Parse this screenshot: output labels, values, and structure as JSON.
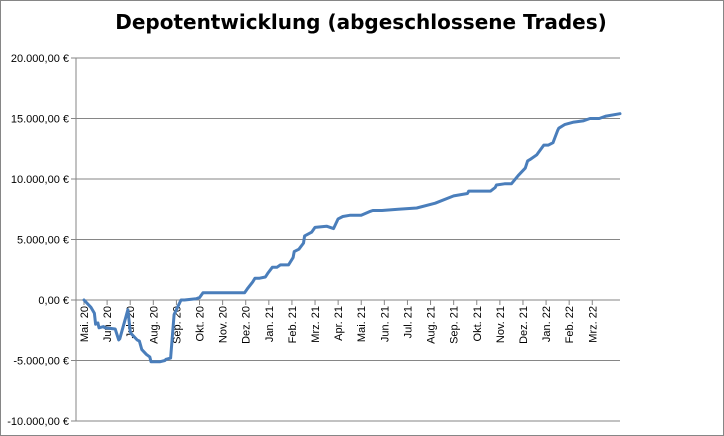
{
  "chart_data": {
    "type": "line",
    "title": "Depotentwicklung (abgeschlossene Trades)",
    "xlabel": "",
    "ylabel": "",
    "ylim": [
      -10000,
      20000
    ],
    "y_ticks": [
      20000,
      15000,
      10000,
      5000,
      0,
      -5000,
      -10000
    ],
    "y_tick_labels": [
      "20.000,00 €",
      "15.000,00 €",
      "10.000,00 €",
      "5.000,00 €",
      "0,00 €",
      "-5.000,00 €",
      "-10.000,00 €"
    ],
    "x_range": [
      0,
      23.2
    ],
    "x_ticks": [
      0,
      1,
      2,
      3,
      4,
      5,
      6,
      7,
      8,
      9,
      10,
      11,
      12,
      13,
      14,
      15,
      16,
      17,
      18,
      19,
      20,
      21,
      22
    ],
    "x_tick_labels": [
      "Mai. 20",
      "Jun. 20",
      "Jul. 20",
      "Aug. 20",
      "Sep. 20",
      "Okt. 20",
      "Nov. 20",
      "Dez. 20",
      "Jan. 21",
      "Feb. 21",
      "Mrz. 21",
      "Apr. 21",
      "Mai. 21",
      "Jun. 21",
      "Jul. 21",
      "Aug. 21",
      "Sep. 21",
      "Okt. 21",
      "Nov. 21",
      "Dez. 21",
      "Jan. 22",
      "Feb. 22",
      "Mrz. 22"
    ],
    "grid": true,
    "legend": "none",
    "series": [
      {
        "color": "#4a7ebb",
        "x": [
          0,
          0.3,
          0.45,
          0.5,
          0.6,
          0.65,
          0.85,
          0.9,
          1.35,
          1.5,
          1.55,
          1.9,
          2.0,
          2.05,
          2.3,
          2.4,
          2.5,
          2.7,
          2.85,
          2.9,
          3.3,
          3.5,
          3.55,
          3.75,
          3.9,
          4.0,
          4.2,
          4.35,
          4.85,
          5.0,
          5.15,
          6.0,
          6.5,
          6.95,
          7.1,
          7.3,
          7.4,
          7.6,
          7.85,
          7.95,
          8.15,
          8.35,
          8.5,
          8.85,
          9.05,
          9.1,
          9.3,
          9.5,
          9.55,
          9.85,
          10.0,
          10.5,
          10.8,
          11.0,
          11.2,
          11.5,
          12.0,
          12.35,
          12.5,
          12.9,
          13.6,
          14.4,
          15.2,
          16.0,
          16.6,
          16.65,
          17.0,
          17.6,
          17.8,
          17.85,
          18.2,
          18.5,
          18.8,
          19.1,
          19.2,
          19.3,
          19.6,
          19.9,
          20.1,
          20.3,
          20.4,
          20.5,
          20.55,
          20.8,
          21.2,
          21.6,
          21.9,
          22.3,
          22.6,
          23.2
        ],
        "y": [
          0,
          -600,
          -1100,
          -2000,
          -1900,
          -2300,
          -2200,
          -2300,
          -2400,
          -3300,
          -3200,
          -800,
          -2600,
          -2800,
          -3300,
          -3400,
          -4100,
          -4500,
          -4700,
          -5100,
          -5100,
          -5000,
          -4900,
          -4800,
          -1200,
          -800,
          0,
          0,
          100,
          200,
          600,
          600,
          600,
          600,
          1000,
          1500,
          1800,
          1800,
          1900,
          2200,
          2700,
          2700,
          2900,
          2900,
          3500,
          4000,
          4200,
          4700,
          5300,
          5600,
          6000,
          6100,
          5900,
          6700,
          6900,
          7000,
          7000,
          7300,
          7400,
          7400,
          7500,
          7600,
          8000,
          8600,
          8800,
          9000,
          9000,
          9000,
          9300,
          9500,
          9600,
          9600,
          10300,
          10900,
          11500,
          11600,
          12000,
          12800,
          12800,
          13000,
          13500,
          14000,
          14200,
          14500,
          14700,
          14800,
          15000,
          15000,
          15200,
          15400
        ]
      }
    ]
  }
}
